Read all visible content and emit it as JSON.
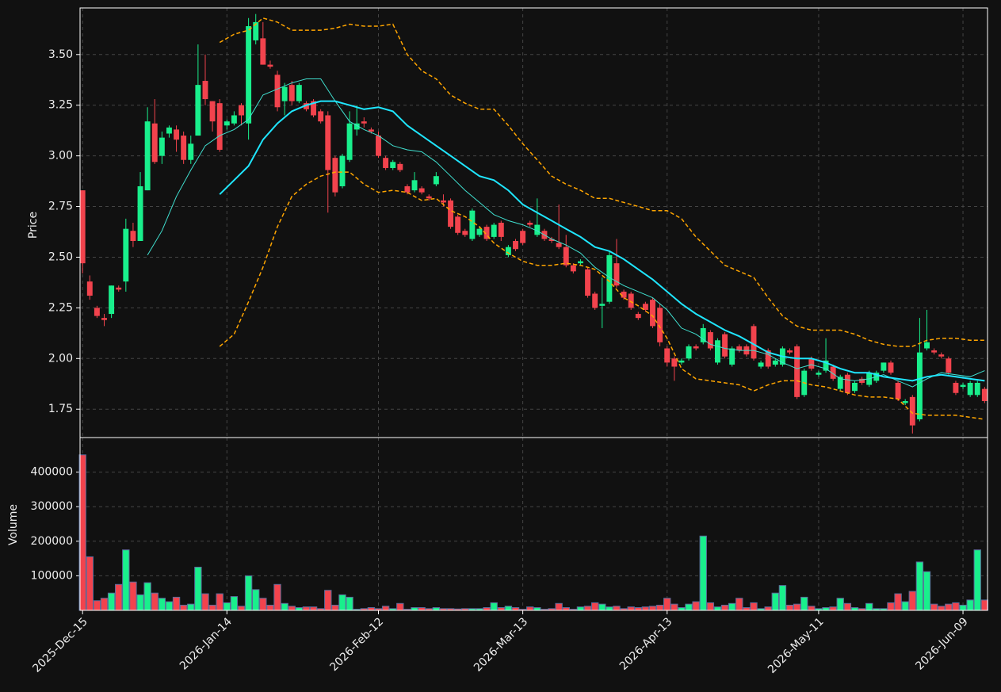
{
  "chart_data": {
    "type": "candlestick",
    "ylabel": "Price",
    "up_color": "#19ef8c",
    "down_color": "#f2434d",
    "grid": true,
    "xlim": [
      -0.35,
      125.4
    ],
    "ylim": [
      1.61,
      3.73
    ],
    "yticks": [
      1.75,
      {
        "value": 2.0,
        "label": "2.00"
      },
      2.25,
      {
        "value": 2.5,
        "label": "2.50"
      },
      2.75,
      {
        "value": 3.0,
        "label": "3.00"
      },
      3.25,
      {
        "value": 3.5,
        "label": "3.50"
      }
    ],
    "categories": [
      "2025-Dec-15",
      null,
      null,
      null,
      null,
      null,
      null,
      null,
      null,
      null,
      null,
      null,
      null,
      null,
      null,
      null,
      null,
      null,
      null,
      null,
      "2026-Jan-14",
      null,
      null,
      null,
      null,
      null,
      null,
      null,
      null,
      null,
      null,
      null,
      null,
      null,
      null,
      null,
      null,
      null,
      null,
      null,
      null,
      "2026-Feb-12",
      null,
      null,
      null,
      null,
      null,
      null,
      null,
      null,
      null,
      null,
      null,
      null,
      null,
      null,
      null,
      null,
      null,
      null,
      null,
      "2026-Mar-13",
      null,
      null,
      null,
      null,
      null,
      null,
      null,
      null,
      null,
      null,
      null,
      null,
      null,
      null,
      null,
      null,
      null,
      null,
      null,
      "2026-Apr-13",
      null,
      null,
      null,
      null,
      null,
      null,
      null,
      null,
      null,
      null,
      null,
      null,
      null,
      null,
      null,
      null,
      null,
      null,
      null,
      null,
      "2026-May-11",
      null,
      null,
      null,
      null,
      null,
      null,
      null,
      null,
      null,
      null,
      null,
      null,
      null,
      null,
      null,
      null,
      null,
      null,
      null,
      "2026-Jun-09",
      null,
      null,
      null
    ],
    "open": [
      2.83,
      2.38,
      2.25,
      2.2,
      2.22,
      2.35,
      2.38,
      2.63,
      2.58,
      2.83,
      3.16,
      3.0,
      3.11,
      3.13,
      3.1,
      2.98,
      3.1,
      3.37,
      3.27,
      3.26,
      3.15,
      3.16,
      3.25,
      3.16,
      3.57,
      3.58,
      3.45,
      3.4,
      3.27,
      3.35,
      3.27,
      3.26,
      3.27,
      3.22,
      3.2,
      2.99,
      2.85,
      2.98,
      3.13,
      3.17,
      3.13,
      3.1,
      2.99,
      2.94,
      2.96,
      2.85,
      2.83,
      2.84,
      2.8,
      2.86,
      2.78,
      2.78,
      2.7,
      2.63,
      2.59,
      2.61,
      2.65,
      2.6,
      2.67,
      2.51,
      2.58,
      2.63,
      2.67,
      2.61,
      2.63,
      2.59,
      2.57,
      2.55,
      2.46,
      2.47,
      2.44,
      2.32,
      2.26,
      2.28,
      2.47,
      2.33,
      2.32,
      2.22,
      2.27,
      2.29,
      2.25,
      2.05,
      2.0,
      1.98,
      2.0,
      2.06,
      2.08,
      2.13,
      1.98,
      2.12,
      1.97,
      2.06,
      2.06,
      2.16,
      1.96,
      2.04,
      1.97,
      1.97,
      2.04,
      2.06,
      1.82,
      2.0,
      1.92,
      1.94,
      1.96,
      1.85,
      1.92,
      1.84,
      1.9,
      1.87,
      1.89,
      1.94,
      1.98,
      1.88,
      1.78,
      1.81,
      1.7,
      2.05,
      2.04,
      2.02,
      2.0,
      1.88,
      1.86,
      1.82,
      1.82,
      1.85
    ],
    "high": [
      2.83,
      2.41,
      2.26,
      2.22,
      2.36,
      2.36,
      2.69,
      2.67,
      2.92,
      3.24,
      3.28,
      3.12,
      3.15,
      3.15,
      3.12,
      3.1,
      3.55,
      3.5,
      3.27,
      3.28,
      3.18,
      3.22,
      3.26,
      3.68,
      3.7,
      3.66,
      3.47,
      3.42,
      3.36,
      3.37,
      3.36,
      3.27,
      3.28,
      3.23,
      3.22,
      3.0,
      3.01,
      3.22,
      3.25,
      3.19,
      3.14,
      3.12,
      3.0,
      2.98,
      2.97,
      2.86,
      2.92,
      2.85,
      2.81,
      2.92,
      2.81,
      2.79,
      2.71,
      2.64,
      2.74,
      2.65,
      2.66,
      2.67,
      2.68,
      2.56,
      2.59,
      2.64,
      2.68,
      2.79,
      2.64,
      2.6,
      2.76,
      2.61,
      2.47,
      2.49,
      2.45,
      2.33,
      2.4,
      2.53,
      2.59,
      2.34,
      2.33,
      2.23,
      2.28,
      2.3,
      2.27,
      2.06,
      2.01,
      2.0,
      2.07,
      2.07,
      2.17,
      2.14,
      2.1,
      2.13,
      2.06,
      2.07,
      2.07,
      2.17,
      1.99,
      2.05,
      2.0,
      2.06,
      2.05,
      2.07,
      1.95,
      2.01,
      1.94,
      2.1,
      1.97,
      1.92,
      1.93,
      1.89,
      1.91,
      1.94,
      1.94,
      1.98,
      1.99,
      1.89,
      1.8,
      1.82,
      2.2,
      2.24,
      2.05,
      2.03,
      2.01,
      1.89,
      1.88,
      1.89,
      1.89,
      1.86
    ],
    "low": [
      2.42,
      2.29,
      2.2,
      2.16,
      2.2,
      2.33,
      2.33,
      2.55,
      2.58,
      2.83,
      2.96,
      2.96,
      3.09,
      3.02,
      2.96,
      2.96,
      3.1,
      3.25,
      3.12,
      3.02,
      3.13,
      3.15,
      3.15,
      3.08,
      3.55,
      3.45,
      3.43,
      3.22,
      3.2,
      3.25,
      3.26,
      3.22,
      3.19,
      3.16,
      2.72,
      2.8,
      2.84,
      2.97,
      3.1,
      3.14,
      3.11,
      2.99,
      2.93,
      2.93,
      2.92,
      2.81,
      2.82,
      2.81,
      2.78,
      2.85,
      2.75,
      2.64,
      2.61,
      2.6,
      2.58,
      2.6,
      2.58,
      2.59,
      2.58,
      2.5,
      2.53,
      2.56,
      2.65,
      2.6,
      2.58,
      2.57,
      2.54,
      2.45,
      2.42,
      2.46,
      2.3,
      2.24,
      2.15,
      2.27,
      2.35,
      2.29,
      2.24,
      2.19,
      2.23,
      2.15,
      2.06,
      1.96,
      1.89,
      1.97,
      1.99,
      2.04,
      2.07,
      2.04,
      1.97,
      2.0,
      1.96,
      2.03,
      2.01,
      1.99,
      1.95,
      1.95,
      1.96,
      1.96,
      2.02,
      1.8,
      1.81,
      1.94,
      1.91,
      1.93,
      1.89,
      1.84,
      1.82,
      1.83,
      1.87,
      1.86,
      1.88,
      1.93,
      1.92,
      1.79,
      1.77,
      1.63,
      1.69,
      2.04,
      2.02,
      2.0,
      1.92,
      1.82,
      1.85,
      1.81,
      1.81,
      1.78
    ],
    "close": [
      2.47,
      2.31,
      2.21,
      2.19,
      2.36,
      2.34,
      2.64,
      2.58,
      2.85,
      3.17,
      2.97,
      3.09,
      3.14,
      3.08,
      2.98,
      3.06,
      3.35,
      3.28,
      3.17,
      3.03,
      3.17,
      3.2,
      3.2,
      3.64,
      3.66,
      3.45,
      3.44,
      3.24,
      3.34,
      3.27,
      3.35,
      3.23,
      3.2,
      3.17,
      2.93,
      2.82,
      3.0,
      3.16,
      3.16,
      3.16,
      3.12,
      3.0,
      2.94,
      2.97,
      2.93,
      2.82,
      2.88,
      2.82,
      2.79,
      2.9,
      2.77,
      2.65,
      2.62,
      2.61,
      2.73,
      2.64,
      2.59,
      2.66,
      2.6,
      2.55,
      2.54,
      2.57,
      2.66,
      2.66,
      2.59,
      2.58,
      2.55,
      2.46,
      2.43,
      2.48,
      2.31,
      2.25,
      2.27,
      2.51,
      2.36,
      2.3,
      2.25,
      2.2,
      2.24,
      2.16,
      2.08,
      1.98,
      1.96,
      1.99,
      2.06,
      2.05,
      2.15,
      2.05,
      2.09,
      2.01,
      2.05,
      2.04,
      2.02,
      2.0,
      1.98,
      1.96,
      1.99,
      2.05,
      2.03,
      1.81,
      1.94,
      1.95,
      1.93,
      1.99,
      1.9,
      1.91,
      1.83,
      1.88,
      1.88,
      1.93,
      1.93,
      1.98,
      1.93,
      1.8,
      1.79,
      1.67,
      2.03,
      2.08,
      2.03,
      2.01,
      1.93,
      1.83,
      1.87,
      1.88,
      1.88,
      1.79
    ],
    "series": [
      {
        "color": "#40e0d0",
        "linewidth": 1,
        "linestyle": "solid",
        "x": [
          9,
          11,
          13,
          15,
          17,
          19,
          21,
          23,
          25,
          27,
          29,
          31,
          33,
          35,
          37,
          39,
          41,
          43,
          45,
          47,
          49,
          51,
          53,
          55,
          57,
          59,
          61,
          63,
          65,
          67,
          69,
          71,
          73,
          75,
          77,
          79,
          81,
          83,
          85,
          87,
          89,
          91,
          93,
          95,
          97,
          99,
          101,
          103,
          105,
          107,
          109,
          111,
          113,
          115,
          117,
          119,
          121,
          123,
          125
        ],
        "values": [
          2.51,
          2.63,
          2.8,
          2.93,
          3.05,
          3.1,
          3.13,
          3.18,
          3.3,
          3.33,
          3.36,
          3.38,
          3.38,
          3.27,
          3.17,
          3.13,
          3.1,
          3.05,
          3.03,
          3.02,
          2.97,
          2.9,
          2.83,
          2.77,
          2.71,
          2.68,
          2.66,
          2.63,
          2.59,
          2.56,
          2.52,
          2.45,
          2.4,
          2.36,
          2.33,
          2.3,
          2.24,
          2.15,
          2.12,
          2.07,
          2.05,
          2.04,
          2.04,
          2.02,
          1.98,
          1.95,
          1.97,
          1.95,
          1.9,
          1.89,
          1.9,
          1.92,
          1.89,
          1.86,
          1.9,
          1.93,
          1.92,
          1.91,
          1.94
        ]
      },
      {
        "color": "#1fe6ff",
        "linewidth": 2,
        "linestyle": "solid",
        "x": [
          19,
          21,
          23,
          25,
          27,
          29,
          31,
          33,
          35,
          37,
          39,
          41,
          43,
          45,
          47,
          49,
          51,
          53,
          55,
          57,
          59,
          61,
          63,
          65,
          67,
          69,
          71,
          73,
          75,
          77,
          79,
          81,
          83,
          85,
          87,
          89,
          91,
          93,
          95,
          97,
          99,
          101,
          103,
          105,
          107,
          109,
          111,
          113,
          115,
          117,
          119,
          121,
          123,
          125
        ],
        "values": [
          2.81,
          2.88,
          2.95,
          3.08,
          3.16,
          3.22,
          3.25,
          3.27,
          3.27,
          3.25,
          3.23,
          3.24,
          3.22,
          3.15,
          3.1,
          3.05,
          3.0,
          2.95,
          2.9,
          2.88,
          2.83,
          2.76,
          2.72,
          2.68,
          2.64,
          2.6,
          2.55,
          2.53,
          2.49,
          2.44,
          2.39,
          2.33,
          2.27,
          2.22,
          2.18,
          2.14,
          2.11,
          2.07,
          2.03,
          2.01,
          2.0,
          2.0,
          1.98,
          1.95,
          1.93,
          1.93,
          1.91,
          1.9,
          1.89,
          1.91,
          1.92,
          1.91,
          1.9,
          1.89
        ]
      },
      {
        "color": "#ffa500",
        "linewidth": 1.5,
        "linestyle": "dashed",
        "x": [
          19,
          21,
          23,
          25,
          27,
          29,
          31,
          33,
          35,
          37,
          39,
          41,
          43,
          45,
          47,
          49,
          51,
          53,
          55,
          57,
          59,
          61,
          63,
          65,
          67,
          69,
          71,
          73,
          75,
          77,
          79,
          81,
          83,
          85,
          87,
          89,
          91,
          93,
          95,
          97,
          99,
          101,
          103,
          105,
          107,
          109,
          111,
          113,
          115,
          117,
          119,
          121,
          123,
          125
        ],
        "values": [
          3.56,
          3.6,
          3.62,
          3.68,
          3.66,
          3.62,
          3.62,
          3.62,
          3.63,
          3.65,
          3.64,
          3.64,
          3.65,
          3.5,
          3.42,
          3.38,
          3.3,
          3.26,
          3.23,
          3.23,
          3.15,
          3.06,
          2.98,
          2.9,
          2.86,
          2.83,
          2.79,
          2.79,
          2.77,
          2.75,
          2.73,
          2.73,
          2.69,
          2.6,
          2.53,
          2.46,
          2.43,
          2.4,
          2.3,
          2.21,
          2.16,
          2.14,
          2.14,
          2.14,
          2.12,
          2.09,
          2.07,
          2.06,
          2.06,
          2.09,
          2.1,
          2.1,
          2.09,
          2.09
        ]
      },
      {
        "color": "#ffa500",
        "linewidth": 1.5,
        "linestyle": "dashed",
        "x": [
          19,
          21,
          23,
          25,
          27,
          29,
          31,
          33,
          35,
          37,
          39,
          41,
          43,
          45,
          47,
          49,
          51,
          53,
          55,
          57,
          59,
          61,
          63,
          65,
          67,
          69,
          71,
          73,
          75,
          77,
          79,
          81,
          83,
          85,
          87,
          89,
          91,
          93,
          95,
          97,
          99,
          101,
          103,
          105,
          107,
          109,
          111,
          113,
          115,
          117,
          119,
          121,
          123,
          125
        ],
        "values": [
          2.06,
          2.12,
          2.28,
          2.45,
          2.65,
          2.8,
          2.86,
          2.9,
          2.92,
          2.92,
          2.86,
          2.82,
          2.83,
          2.82,
          2.78,
          2.79,
          2.73,
          2.7,
          2.65,
          2.57,
          2.52,
          2.48,
          2.46,
          2.46,
          2.47,
          2.46,
          2.44,
          2.38,
          2.3,
          2.26,
          2.21,
          2.1,
          1.95,
          1.9,
          1.89,
          1.88,
          1.87,
          1.84,
          1.87,
          1.89,
          1.89,
          1.87,
          1.86,
          1.84,
          1.82,
          1.81,
          1.81,
          1.8,
          1.73,
          1.72,
          1.72,
          1.72,
          1.71,
          1.7
        ]
      }
    ],
    "volume": {
      "ylabel": "Volume",
      "edgecolor": "#5b6b9a",
      "ylim": [
        0,
        500000
      ],
      "yticks": [
        100000,
        200000,
        300000,
        400000
      ],
      "values": [
        450000,
        155000,
        28000,
        35000,
        50000,
        75000,
        175000,
        82000,
        45000,
        80000,
        50000,
        35000,
        25000,
        38000,
        15000,
        18000,
        125000,
        48000,
        15000,
        48000,
        22000,
        40000,
        12000,
        100000,
        60000,
        35000,
        15000,
        75000,
        20000,
        12000,
        8000,
        10000,
        10000,
        5000,
        58000,
        15000,
        45000,
        38000,
        3000,
        5000,
        8000,
        5000,
        12000,
        5000,
        20000,
        3000,
        8000,
        8000,
        5000,
        8000,
        5000,
        5000,
        4000,
        5000,
        5000,
        5000,
        8000,
        22000,
        8000,
        12000,
        8000,
        3000,
        10000,
        8000,
        3000,
        5000,
        20000,
        8000,
        3000,
        10000,
        12000,
        22000,
        18000,
        10000,
        12000,
        5000,
        10000,
        8000,
        10000,
        12000,
        15000,
        35000,
        18000,
        8000,
        18000,
        25000,
        215000,
        22000,
        10000,
        15000,
        20000,
        35000,
        8000,
        22000,
        5000,
        10000,
        50000,
        72000,
        15000,
        18000,
        38000,
        12000,
        5000,
        8000,
        10000,
        35000,
        20000,
        8000,
        5000,
        20000,
        5000,
        5000,
        22000,
        48000,
        25000,
        55000,
        140000,
        112000,
        18000,
        12000,
        18000,
        22000,
        15000,
        30000,
        175000,
        30000
      ]
    }
  }
}
